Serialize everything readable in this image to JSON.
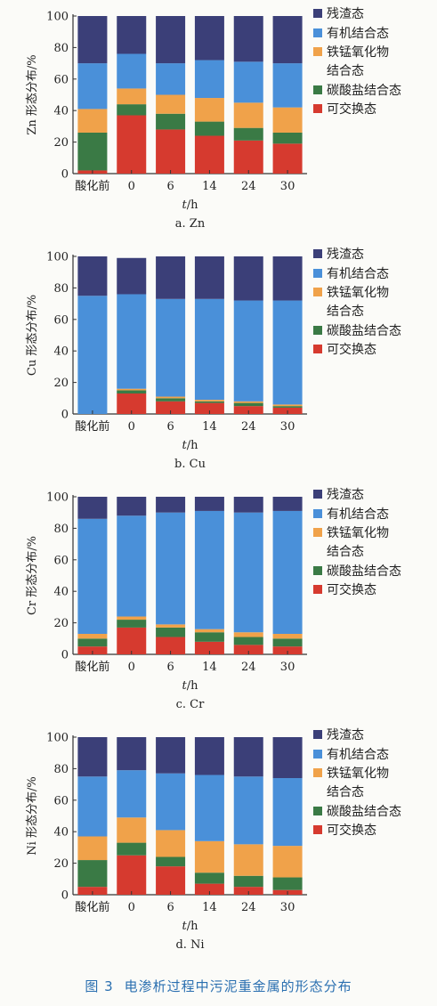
{
  "figure_caption": {
    "number": "图 3",
    "title": "电渗析过程中污泥重金属的形态分布"
  },
  "series_colors": {
    "可交换态": "#d63a2f",
    "碳酸盐结合态": "#3a7a45",
    "铁锰氧化物结合态": "#f0a24a",
    "有机结合态": "#4a90d9",
    "残渣态": "#3b3f78"
  },
  "chart_data": [
    {
      "type": "bar",
      "stacked": true,
      "caption": "a. Zn",
      "ylabel": "Zn 形态分布/%",
      "xlabel": "t/h",
      "ylim": [
        0,
        100
      ],
      "yticks": [
        0,
        20,
        40,
        60,
        80,
        100
      ],
      "categories": [
        "酸化前",
        "0",
        "6",
        "14",
        "24",
        "30"
      ],
      "legend": [
        "残渣态",
        "有机结合态",
        "铁锰氧化物",
        "结合态",
        "碳酸盐结合态",
        "可交换态"
      ],
      "series": [
        {
          "name": "可交换态",
          "values": [
            2,
            37,
            28,
            24,
            21,
            19
          ]
        },
        {
          "name": "碳酸盐结合态",
          "values": [
            24,
            7,
            10,
            9,
            8,
            7
          ]
        },
        {
          "name": "铁锰氧化物结合态",
          "values": [
            15,
            10,
            12,
            15,
            16,
            16
          ]
        },
        {
          "name": "有机结合态",
          "values": [
            29,
            22,
            20,
            24,
            26,
            28
          ]
        },
        {
          "name": "残渣态",
          "values": [
            30,
            24,
            30,
            28,
            29,
            30
          ]
        }
      ]
    },
    {
      "type": "bar",
      "stacked": true,
      "caption": "b. Cu",
      "ylabel": "Cu 形态分布/%",
      "xlabel": "t/h",
      "ylim": [
        0,
        100
      ],
      "yticks": [
        0,
        20,
        40,
        60,
        80,
        100
      ],
      "categories": [
        "酸化前",
        "0",
        "6",
        "14",
        "24",
        "30"
      ],
      "legend": [
        "残渣态",
        "有机结合态",
        "铁锰氧化物",
        "结合态",
        "碳酸盐结合态",
        "可交换态"
      ],
      "series": [
        {
          "name": "可交换态",
          "values": [
            0,
            13,
            8,
            7,
            5,
            4
          ]
        },
        {
          "name": "碳酸盐结合态",
          "values": [
            0,
            2,
            2,
            1,
            2,
            1
          ]
        },
        {
          "name": "铁锰氧化物结合态",
          "values": [
            0,
            1,
            1,
            1,
            1,
            1
          ]
        },
        {
          "name": "有机结合态",
          "values": [
            75,
            60,
            62,
            64,
            64,
            66
          ]
        },
        {
          "name": "残渣态",
          "values": [
            25,
            23,
            27,
            27,
            28,
            28
          ]
        }
      ]
    },
    {
      "type": "bar",
      "stacked": true,
      "caption": "c. Cr",
      "ylabel": "Cr 形态分布/%",
      "xlabel": "t/h",
      "ylim": [
        0,
        100
      ],
      "yticks": [
        0,
        20,
        40,
        60,
        80,
        100
      ],
      "categories": [
        "酸化前",
        "0",
        "6",
        "14",
        "24",
        "30"
      ],
      "legend": [
        "残渣态",
        "有机结合态",
        "铁锰氧化物",
        "结合态",
        "碳酸盐结合态",
        "可交换态"
      ],
      "series": [
        {
          "name": "可交换态",
          "values": [
            5,
            17,
            11,
            8,
            6,
            5
          ]
        },
        {
          "name": "碳酸盐结合态",
          "values": [
            5,
            5,
            6,
            6,
            5,
            5
          ]
        },
        {
          "name": "铁锰氧化物结合态",
          "values": [
            3,
            2,
            2,
            2,
            3,
            3
          ]
        },
        {
          "name": "有机结合态",
          "values": [
            73,
            64,
            71,
            75,
            76,
            78
          ]
        },
        {
          "name": "残渣态",
          "values": [
            14,
            12,
            10,
            9,
            10,
            9
          ]
        }
      ]
    },
    {
      "type": "bar",
      "stacked": true,
      "caption": "d. Ni",
      "ylabel": "Ni 形态分布/%",
      "xlabel": "t/h",
      "ylim": [
        0,
        100
      ],
      "yticks": [
        0,
        20,
        40,
        60,
        80,
        100
      ],
      "categories": [
        "酸化前",
        "0",
        "6",
        "14",
        "24",
        "30"
      ],
      "legend": [
        "残渣态",
        "有机结合态",
        "铁锰氧化物",
        "结合态",
        "碳酸盐结合态",
        "可交换态"
      ],
      "series": [
        {
          "name": "可交换态",
          "values": [
            5,
            25,
            18,
            7,
            5,
            3
          ]
        },
        {
          "name": "碳酸盐结合态",
          "values": [
            17,
            8,
            6,
            7,
            7,
            8
          ]
        },
        {
          "name": "铁锰氧化物结合态",
          "values": [
            15,
            16,
            17,
            20,
            20,
            20
          ]
        },
        {
          "name": "有机结合态",
          "values": [
            38,
            30,
            36,
            42,
            43,
            43
          ]
        },
        {
          "name": "残渣态",
          "values": [
            25,
            21,
            23,
            24,
            25,
            26
          ]
        }
      ]
    }
  ]
}
